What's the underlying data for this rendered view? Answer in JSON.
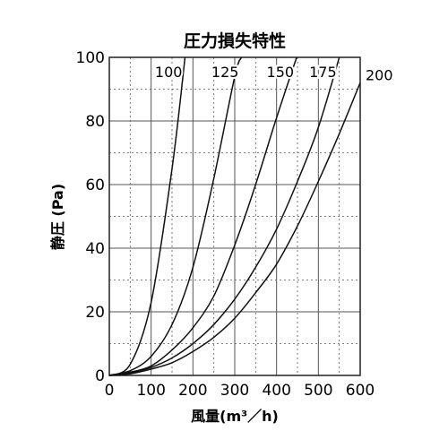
{
  "chart_data": {
    "type": "line",
    "title": "圧力損失特性",
    "xlabel": "風量(m³／h)",
    "ylabel": "静圧 (Pa)",
    "xlim": [
      0,
      600
    ],
    "ylim": [
      0,
      100
    ],
    "x_ticks": [
      "0",
      "100",
      "200",
      "300",
      "400",
      "500",
      "600"
    ],
    "y_ticks": [
      "0",
      "20",
      "40",
      "60",
      "80",
      "100"
    ],
    "grid": true,
    "series": [
      {
        "name": "100",
        "x": [
          0,
          50,
          100,
          150,
          181
        ],
        "y": [
          0,
          3.5,
          23,
          65,
          100
        ]
      },
      {
        "name": "125",
        "x": [
          0,
          50,
          100,
          150,
          200,
          250,
          300,
          316
        ],
        "y": [
          0,
          1.5,
          6,
          16,
          34,
          62,
          94,
          100
        ]
      },
      {
        "name": "150",
        "x": [
          0,
          50,
          100,
          150,
          200,
          250,
          300,
          350,
          400,
          448
        ],
        "y": [
          0,
          1,
          3,
          8,
          15,
          25,
          41,
          60,
          81,
          100
        ]
      },
      {
        "name": "175",
        "x": [
          0,
          50,
          100,
          150,
          200,
          250,
          300,
          350,
          400,
          450,
          500,
          550
        ],
        "y": [
          0,
          0.8,
          2.5,
          5.5,
          10,
          16,
          24,
          34,
          46,
          61,
          78,
          100
        ]
      },
      {
        "name": "200",
        "x": [
          0,
          50,
          100,
          150,
          200,
          250,
          300,
          350,
          400,
          450,
          500,
          550,
          600
        ],
        "y": [
          0,
          0.5,
          2,
          4,
          7.5,
          12,
          18,
          26,
          35,
          47,
          61,
          76,
          92
        ]
      }
    ]
  }
}
